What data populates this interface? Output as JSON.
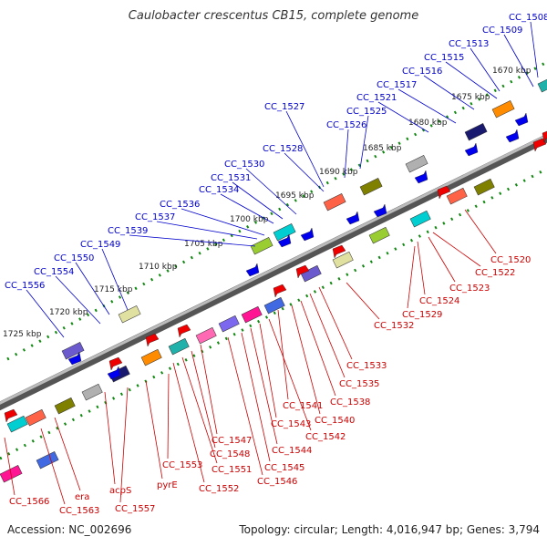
{
  "title": "Caulobacter crescentus CB15, complete genome",
  "footer": {
    "accession": "Accession: NC_002696",
    "summary": "Topology: circular; Length: 4,016,947 bp; Genes: 3,794"
  },
  "colors": {
    "forward_label": "#0000cc",
    "reverse_label": "#cc0000",
    "backbone": "#888888",
    "tick": "#118811",
    "forward_arrow": "#0000ee",
    "reverse_arrow": "#ee0000"
  },
  "ruler_ticks": [
    "1670 kbp",
    "1675 kbp",
    "1680 kbp",
    "1685 kbp",
    "1690 kbp",
    "1695 kbp",
    "1700 kbp",
    "1705 kbp",
    "1710 kbp",
    "1715 kbp",
    "1720 kbp",
    "1725 kbp"
  ],
  "forward_genes": [
    "CC_1508",
    "CC_1509",
    "CC_1513",
    "CC_1515",
    "CC_1516",
    "CC_1517",
    "CC_1521",
    "CC_1525",
    "CC_1526",
    "CC_1527",
    "CC_1528",
    "CC_1530",
    "CC_1531",
    "CC_1534",
    "CC_1536",
    "CC_1537",
    "CC_1539",
    "CC_1549",
    "CC_1550",
    "CC_1554",
    "CC_1556"
  ],
  "reverse_genes": [
    "CC_1520",
    "CC_1522",
    "CC_1523",
    "CC_1524",
    "CC_1529",
    "CC_1532",
    "CC_1533",
    "CC_1535",
    "CC_1538",
    "CC_1540",
    "CC_1541",
    "CC_1542",
    "CC_1543",
    "CC_1544",
    "CC_1545",
    "CC_1546",
    "CC_1547",
    "CC_1548",
    "CC_1551",
    "CC_1552",
    "CC_1553",
    "pyrE",
    "CC_1557",
    "acpS",
    "era",
    "CC_1563",
    "CC_1566"
  ]
}
